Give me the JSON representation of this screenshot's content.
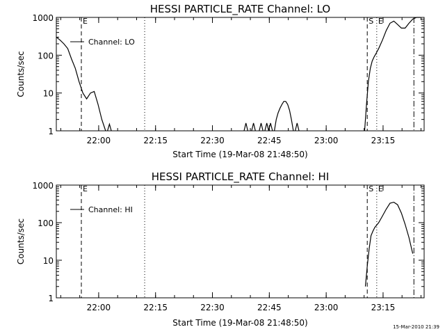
{
  "footer_timestamp": "15-Mar-2010 21:39",
  "chart_data": [
    {
      "type": "line",
      "title": "HESSI PARTICLE_RATE Channel: LO",
      "xlabel": "Start Time (19-Mar-08 21:48:50)",
      "ylabel": "Counts/sec",
      "legend": "Channel: LO",
      "legend_placement": "top-left",
      "y_scale": "log",
      "ylim": [
        1,
        1000
      ],
      "y_ticks": [
        "1",
        "10",
        "100",
        "1000"
      ],
      "x_ticks": [
        "22:00",
        "22:15",
        "22:30",
        "22:45",
        "23:00",
        "23:15"
      ],
      "xlim_minutes_after_start": [
        0,
        97
      ],
      "markers": [
        {
          "label": "E",
          "minute": 6.6,
          "style": "dashed"
        },
        {
          "label": "",
          "minute": 23.3,
          "style": "dotted"
        },
        {
          "label": "S",
          "minute": 82.0,
          "style": "dashed"
        },
        {
          "label": "E",
          "minute": 84.5,
          "style": "dotted"
        },
        {
          "label": "",
          "minute": 94.3,
          "style": "dashdot"
        }
      ],
      "x": [
        0,
        1,
        2,
        3,
        4,
        5,
        6,
        7,
        8,
        9,
        10,
        11,
        12,
        13,
        14,
        15,
        16
      ],
      "y": [
        300,
        250,
        200,
        150,
        80,
        45,
        20,
        10,
        7,
        10,
        11,
        5,
        2,
        1,
        null,
        null,
        null
      ],
      "segments": [
        {
          "x": [
            13.5,
            14.0,
            14.5
          ],
          "y": [
            1,
            1.5,
            1
          ]
        },
        {
          "x": [
            49.5,
            50.0,
            50.5
          ],
          "y": [
            1,
            1.6,
            1
          ]
        },
        {
          "x": [
            51.5,
            52.0,
            52.5
          ],
          "y": [
            1,
            1.6,
            1
          ]
        },
        {
          "x": [
            53.5,
            54.0,
            54.5
          ],
          "y": [
            1,
            1.6,
            1
          ]
        },
        {
          "x": [
            55.0,
            55.5,
            56.0,
            56.5,
            57.0
          ],
          "y": [
            1,
            1.6,
            1,
            1.6,
            1
          ]
        },
        {
          "x": [
            57.5,
            58.0,
            58.5,
            59.0,
            59.5,
            60.0,
            60.5,
            61.0,
            61.5,
            62.0,
            62.5
          ],
          "y": [
            1,
            2,
            3,
            4,
            5,
            6,
            6,
            5,
            3.5,
            2,
            1
          ]
        },
        {
          "x": [
            63.0,
            63.5,
            64.0
          ],
          "y": [
            1,
            1.6,
            1
          ]
        },
        {
          "x": [
            81.3,
            81.8,
            82.3,
            82.8,
            83.3,
            83.8,
            84.3,
            85.0,
            86.0,
            87.0,
            88.0,
            89.0,
            90.0,
            91.0,
            92.0,
            93.0,
            94.0,
            95.0,
            96.0
          ],
          "y": [
            1,
            5,
            20,
            45,
            70,
            90,
            110,
            150,
            250,
            450,
            700,
            800,
            650,
            520,
            520,
            700,
            900,
            1000,
            1000
          ]
        }
      ]
    },
    {
      "type": "line",
      "title": "HESSI PARTICLE_RATE Channel: HI",
      "xlabel": "Start Time (19-Mar-08 21:48:50)",
      "ylabel": "Counts/sec",
      "legend": "Channel: HI",
      "legend_placement": "top-left",
      "y_scale": "log",
      "ylim": [
        1,
        1000
      ],
      "y_ticks": [
        "1",
        "10",
        "100",
        "1000"
      ],
      "x_ticks": [
        "22:00",
        "22:15",
        "22:30",
        "22:45",
        "23:00",
        "23:15"
      ],
      "xlim_minutes_after_start": [
        0,
        97
      ],
      "markers": [
        {
          "label": "E",
          "minute": 6.6,
          "style": "dashed"
        },
        {
          "label": "",
          "minute": 23.3,
          "style": "dotted"
        },
        {
          "label": "S",
          "minute": 82.0,
          "style": "dashed"
        },
        {
          "label": "E",
          "minute": 84.5,
          "style": "dotted"
        },
        {
          "label": "",
          "minute": 94.3,
          "style": "dashdot"
        }
      ],
      "segments": [
        {
          "x": [
            81.5,
            82.0,
            82.5,
            83.0,
            83.5,
            84.0,
            85.0,
            86.0,
            87.0,
            88.0,
            89.0,
            90.0,
            91.0,
            92.0,
            93.0,
            94.0
          ],
          "y": [
            2,
            7,
            20,
            45,
            60,
            75,
            100,
            150,
            230,
            330,
            350,
            300,
            180,
            90,
            40,
            15
          ]
        }
      ]
    }
  ]
}
